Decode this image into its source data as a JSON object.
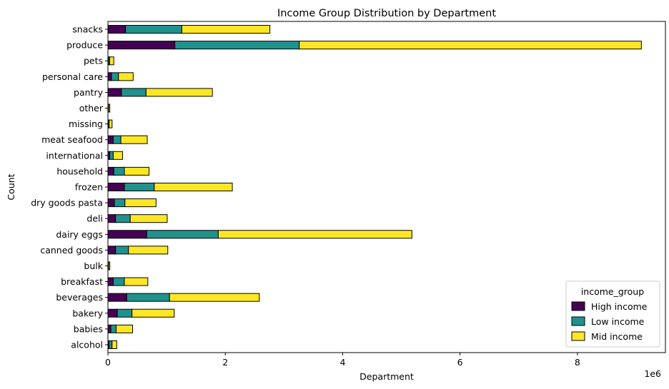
{
  "chart_data": {
    "type": "bar",
    "orientation": "horizontal",
    "stacked": true,
    "title": "Income Group Distribution by Department",
    "xlabel": "Department",
    "ylabel": "Count",
    "x_multiplier_label": "1e6",
    "xlim": [
      0,
      9.5
    ],
    "x_ticks": [
      0,
      2,
      4,
      6,
      8
    ],
    "x_tick_labels": [
      "0",
      "2",
      "4",
      "6",
      "8"
    ],
    "grid": false,
    "legend": {
      "title": "income_group",
      "position": "lower-right"
    },
    "categories": [
      "snacks",
      "produce",
      "pets",
      "personal care",
      "pantry",
      "other",
      "missing",
      "meat seafood",
      "international",
      "household",
      "frozen",
      "dry goods pasta",
      "deli",
      "dairy eggs",
      "canned goods",
      "bulk",
      "breakfast",
      "beverages",
      "bakery",
      "babies",
      "alcohol"
    ],
    "series": [
      {
        "name": "High income",
        "color": "#440154",
        "values": [
          0.3,
          1.14,
          0.01,
          0.06,
          0.23,
          0.004,
          0.006,
          0.09,
          0.03,
          0.1,
          0.28,
          0.11,
          0.13,
          0.66,
          0.13,
          0.004,
          0.09,
          0.32,
          0.16,
          0.05,
          0.02
        ]
      },
      {
        "name": "Low income",
        "color": "#21918c",
        "values": [
          0.96,
          2.12,
          0.02,
          0.12,
          0.42,
          0.008,
          0.015,
          0.13,
          0.06,
          0.18,
          0.51,
          0.18,
          0.25,
          1.22,
          0.22,
          0.008,
          0.19,
          0.73,
          0.25,
          0.09,
          0.05
        ]
      },
      {
        "name": "Mid income",
        "color": "#fde725",
        "values": [
          1.5,
          5.83,
          0.07,
          0.25,
          1.13,
          0.02,
          0.05,
          0.45,
          0.16,
          0.42,
          1.33,
          0.53,
          0.63,
          3.3,
          0.67,
          0.02,
          0.4,
          1.53,
          0.72,
          0.28,
          0.08
        ]
      }
    ]
  }
}
